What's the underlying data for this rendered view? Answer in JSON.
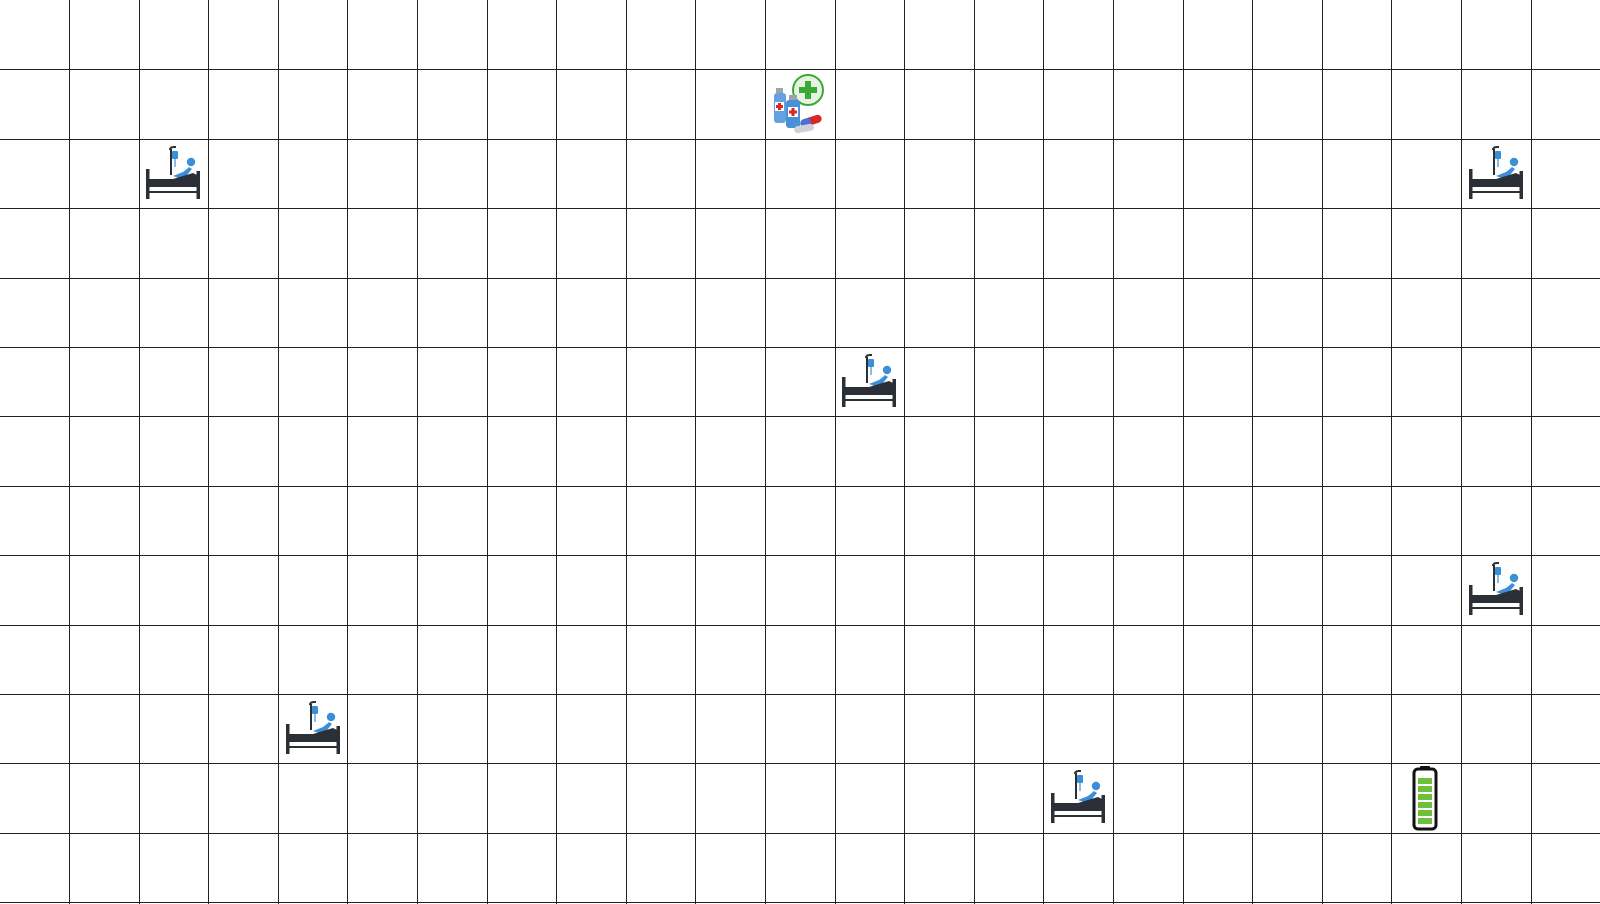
{
  "grid": {
    "cols": 23,
    "rows": 13,
    "line_color": "#222222"
  },
  "entities": [
    {
      "type": "medicine-station",
      "icon": "medicine-bottles-icon",
      "col": 11,
      "row": 1
    },
    {
      "type": "patient",
      "icon": "hospital-bed-patient-icon",
      "col": 2,
      "row": 2
    },
    {
      "type": "patient",
      "icon": "hospital-bed-patient-icon",
      "col": 21,
      "row": 2
    },
    {
      "type": "patient",
      "icon": "hospital-bed-patient-icon",
      "col": 12,
      "row": 5
    },
    {
      "type": "patient",
      "icon": "hospital-bed-patient-icon",
      "col": 21,
      "row": 8
    },
    {
      "type": "patient",
      "icon": "hospital-bed-patient-icon",
      "col": 4,
      "row": 10
    },
    {
      "type": "patient",
      "icon": "hospital-bed-patient-icon",
      "col": 15,
      "row": 11
    },
    {
      "type": "battery",
      "icon": "battery-full-icon",
      "col": 20,
      "row": 11,
      "level": 1.0
    }
  ],
  "colors": {
    "bed_dark": "#2b3036",
    "patient_blue": "#3b8fd9",
    "battery_green": "#6fbf3a",
    "battery_outline": "#111111",
    "bottle_blue": "#4a90d9",
    "cross_red": "#d62828",
    "plus_green": "#3aaa35"
  }
}
